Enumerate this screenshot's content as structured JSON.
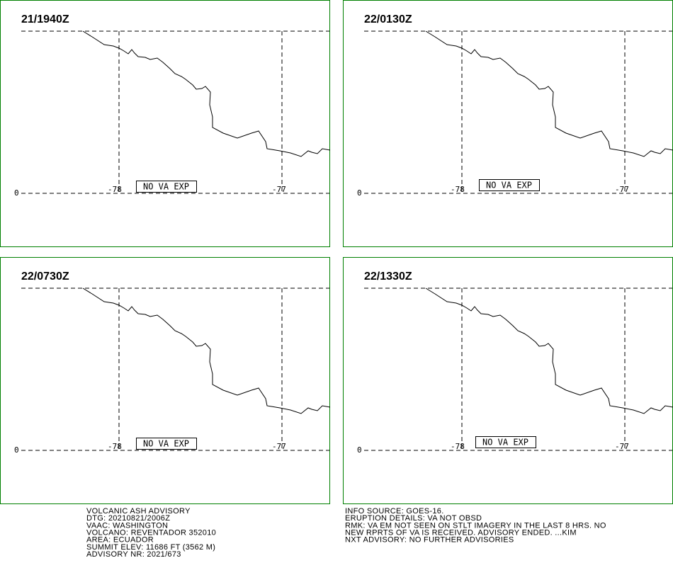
{
  "panels": [
    {
      "time": "21/1940Z",
      "lat_label": "0",
      "lon_labels": [
        "-78",
        "-77"
      ],
      "status": "NO VA EXP"
    },
    {
      "time": "22/0130Z",
      "lat_label": "0",
      "lon_labels": [
        "-78",
        "-77"
      ],
      "status": "NO VA EXP"
    },
    {
      "time": "22/0730Z",
      "lat_label": "0",
      "lon_labels": [
        "-78",
        "-77"
      ],
      "status": "NO VA EXP"
    },
    {
      "time": "22/1330Z",
      "lat_label": "0",
      "lon_labels": [
        "-78",
        "-77"
      ],
      "status": "NO VA EXP"
    }
  ],
  "footer": {
    "left": [
      "VOLCANIC ASH ADVISORY",
      "DTG: 20210821/2006Z",
      "VAAC: WASHINGTON",
      "VOLCANO: REVENTADOR 352010",
      "AREA: ECUADOR",
      "SUMMIT ELEV: 11686 FT (3562 M)",
      "ADVISORY NR: 2021/673"
    ],
    "right": [
      "INFO SOURCE: GOES-16.",
      "ERUPTION DETAILS: VA NOT OBSD",
      "RMK: VA EM NOT SEEN ON STLT IMAGERY IN THE LAST 8 HRS. NO",
      "NEW RPRTS OF VA IS RECEIVED. ADVISORY ENDED. ...KIM",
      "NXT ADVISORY: NO FURTHER ADVISORIES"
    ]
  }
}
